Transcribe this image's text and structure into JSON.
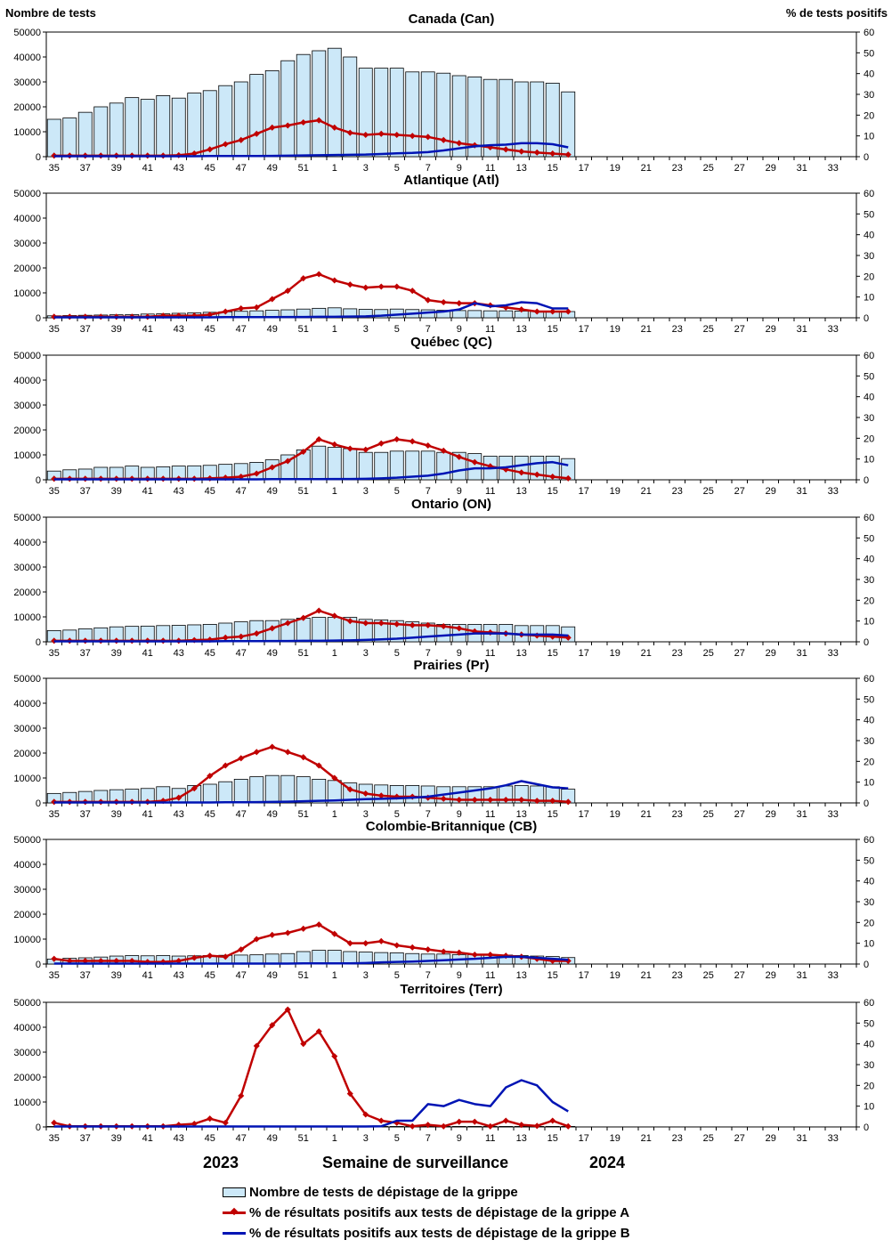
{
  "chart_data": [
    {
      "type": "bar+line",
      "title": "Canada (Can)",
      "weeks": [
        35,
        36,
        37,
        38,
        39,
        40,
        41,
        42,
        43,
        44,
        45,
        46,
        47,
        48,
        49,
        50,
        51,
        52,
        1,
        2,
        3,
        4,
        5,
        6,
        7,
        8,
        9,
        10,
        11,
        12,
        13,
        14,
        15,
        16
      ],
      "x_tick_labels": [
        "35",
        "37",
        "39",
        "41",
        "43",
        "45",
        "47",
        "49",
        "51",
        "1",
        "3",
        "5",
        "7",
        "9",
        "11",
        "13",
        "15",
        "17",
        "19",
        "21",
        "23",
        "25",
        "27",
        "29",
        "31",
        "33"
      ],
      "ylabel_left": "Nombre de tests",
      "ylabel_right": "% de tests positifs",
      "ylim_left": [
        0,
        50000
      ],
      "ylim_right": [
        0,
        60
      ],
      "bars": [
        15000,
        15500,
        17800,
        20000,
        21500,
        23700,
        23000,
        24500,
        23500,
        25500,
        26500,
        28500,
        30000,
        33000,
        34500,
        38500,
        41000,
        42500,
        43500,
        40000,
        35500,
        35500,
        35500,
        34000,
        34000,
        33500,
        32500,
        32000,
        31000,
        31000,
        30000,
        30000,
        29500,
        26000
      ],
      "flu_a_pct": [
        0.5,
        0.5,
        0.5,
        0.5,
        0.5,
        0.5,
        0.5,
        0.5,
        0.7,
        1.5,
        3.5,
        6,
        8,
        11,
        14,
        15,
        16.5,
        17.5,
        14,
        11.5,
        10.5,
        11,
        10.5,
        10,
        9.5,
        8,
        6.5,
        5.5,
        4.5,
        3.5,
        2.5,
        2,
        1.5,
        1
      ],
      "flu_b_pct": [
        0.2,
        0.2,
        0.2,
        0.2,
        0.2,
        0.2,
        0.2,
        0.2,
        0.2,
        0.2,
        0.3,
        0.3,
        0.3,
        0.3,
        0.4,
        0.5,
        0.6,
        0.7,
        0.8,
        0.9,
        1,
        1.3,
        1.6,
        1.8,
        2.2,
        3,
        4,
        5,
        5.5,
        5.8,
        6.5,
        6.5,
        6,
        4.5
      ]
    },
    {
      "type": "bar+line",
      "title": "Atlantique (Atl)",
      "weeks": [
        35,
        36,
        37,
        38,
        39,
        40,
        41,
        42,
        43,
        44,
        45,
        46,
        47,
        48,
        49,
        50,
        51,
        52,
        1,
        2,
        3,
        4,
        5,
        6,
        7,
        8,
        9,
        10,
        11,
        12,
        13,
        14,
        15,
        16
      ],
      "x_tick_labels": [
        "35",
        "37",
        "39",
        "41",
        "43",
        "45",
        "47",
        "49",
        "51",
        "1",
        "3",
        "5",
        "7",
        "9",
        "11",
        "13",
        "15",
        "17",
        "19",
        "21",
        "23",
        "25",
        "27",
        "29",
        "31",
        "33"
      ],
      "ylim_left": [
        0,
        50000
      ],
      "ylim_right": [
        0,
        60
      ],
      "bars": [
        800,
        900,
        1000,
        1100,
        1200,
        1300,
        1500,
        1600,
        1800,
        2000,
        2200,
        2400,
        2600,
        2800,
        3000,
        3200,
        3500,
        3800,
        4000,
        3600,
        3400,
        3300,
        3500,
        3300,
        3200,
        3000,
        2900,
        2900,
        2800,
        2800,
        2700,
        2600,
        2600,
        2500
      ],
      "flu_a_pct": [
        0.5,
        0.5,
        0.5,
        0.5,
        0.5,
        0.5,
        0.5,
        1,
        1,
        1,
        1.5,
        3,
        4.5,
        5,
        9,
        13,
        19,
        21,
        18,
        16,
        14.5,
        15,
        15,
        13,
        8.5,
        7.5,
        7,
        7,
        6,
        5,
        4,
        3,
        3,
        3
      ],
      "flu_b_pct": [
        0.2,
        0.2,
        0.2,
        0.2,
        0.2,
        0.2,
        0.2,
        0.2,
        0.2,
        0.2,
        0.2,
        0.3,
        0.3,
        0.3,
        0.3,
        0.4,
        0.4,
        0.5,
        0.5,
        0.6,
        0.7,
        1,
        1.5,
        2,
        2.5,
        3,
        4,
        7,
        5.5,
        6,
        7.5,
        7,
        4.5,
        4.5
      ]
    },
    {
      "type": "bar+line",
      "title": "Québec (QC)",
      "weeks": [
        35,
        36,
        37,
        38,
        39,
        40,
        41,
        42,
        43,
        44,
        45,
        46,
        47,
        48,
        49,
        50,
        51,
        52,
        1,
        2,
        3,
        4,
        5,
        6,
        7,
        8,
        9,
        10,
        11,
        12,
        13,
        14,
        15,
        16
      ],
      "x_tick_labels": [
        "35",
        "37",
        "39",
        "41",
        "43",
        "45",
        "47",
        "49",
        "51",
        "1",
        "3",
        "5",
        "7",
        "9",
        "11",
        "13",
        "15",
        "17",
        "19",
        "21",
        "23",
        "25",
        "27",
        "29",
        "31",
        "33"
      ],
      "ylim_left": [
        0,
        50000
      ],
      "ylim_right": [
        0,
        60
      ],
      "bars": [
        3500,
        4000,
        4300,
        5000,
        5000,
        5500,
        5000,
        5200,
        5500,
        5600,
        5800,
        6200,
        6500,
        7000,
        8000,
        10000,
        12000,
        13500,
        13000,
        12500,
        11000,
        11000,
        11500,
        11500,
        11500,
        11000,
        11000,
        10500,
        9500,
        9500,
        9500,
        9500,
        9500,
        8500
      ],
      "flu_a_pct": [
        0.5,
        0.5,
        0.5,
        0.5,
        0.5,
        0.5,
        0.5,
        0.5,
        0.5,
        0.5,
        0.7,
        1,
        1.5,
        3,
        6,
        9,
        13.5,
        19.5,
        17,
        15,
        14.5,
        17.5,
        19.5,
        18.5,
        16.5,
        14,
        11,
        8.5,
        6.5,
        5,
        3.5,
        2.5,
        1.5,
        0.7
      ],
      "flu_b_pct": [
        0.2,
        0.2,
        0.2,
        0.2,
        0.2,
        0.2,
        0.2,
        0.2,
        0.2,
        0.2,
        0.2,
        0.2,
        0.2,
        0.2,
        0.3,
        0.3,
        0.3,
        0.3,
        0.4,
        0.4,
        0.5,
        0.7,
        1,
        1.5,
        2,
        3,
        4.5,
        5.5,
        5.5,
        6,
        7,
        8,
        8.5,
        7
      ]
    },
    {
      "type": "bar+line",
      "title": "Ontario (ON)",
      "weeks": [
        35,
        36,
        37,
        38,
        39,
        40,
        41,
        42,
        43,
        44,
        45,
        46,
        47,
        48,
        49,
        50,
        51,
        52,
        1,
        2,
        3,
        4,
        5,
        6,
        7,
        8,
        9,
        10,
        11,
        12,
        13,
        14,
        15,
        16
      ],
      "x_tick_labels": [
        "35",
        "37",
        "39",
        "41",
        "43",
        "45",
        "47",
        "49",
        "51",
        "1",
        "3",
        "5",
        "7",
        "9",
        "11",
        "13",
        "15",
        "17",
        "19",
        "21",
        "23",
        "25",
        "27",
        "29",
        "31",
        "33"
      ],
      "ylim_left": [
        0,
        50000
      ],
      "ylim_right": [
        0,
        60
      ],
      "bars": [
        4500,
        4700,
        5200,
        5600,
        6000,
        6200,
        6300,
        6500,
        6600,
        6800,
        7000,
        7500,
        8000,
        8500,
        8500,
        9000,
        9500,
        9800,
        9800,
        9800,
        9000,
        8800,
        8500,
        8000,
        7500,
        7000,
        7000,
        7000,
        7000,
        7000,
        6500,
        6500,
        6500,
        6000
      ],
      "flu_a_pct": [
        0.5,
        0.5,
        0.5,
        0.5,
        0.5,
        0.5,
        0.5,
        0.5,
        0.5,
        0.8,
        1,
        2,
        2.5,
        4,
        6.5,
        9,
        11.5,
        15,
        12.5,
        10,
        9,
        9,
        8.5,
        8,
        8,
        7.5,
        6.5,
        5,
        4.5,
        4,
        3.5,
        3,
        2.5,
        2
      ],
      "flu_b_pct": [
        0.2,
        0.2,
        0.2,
        0.2,
        0.2,
        0.2,
        0.2,
        0.2,
        0.2,
        0.2,
        0.2,
        0.3,
        0.3,
        0.3,
        0.4,
        0.4,
        0.5,
        0.5,
        0.6,
        0.7,
        0.9,
        1.2,
        1.5,
        2,
        2.5,
        3,
        3.5,
        4,
        4,
        4,
        3.5,
        3.5,
        3.5,
        3
      ]
    },
    {
      "type": "bar+line",
      "title": "Prairies (Pr)",
      "weeks": [
        35,
        36,
        37,
        38,
        39,
        40,
        41,
        42,
        43,
        44,
        45,
        46,
        47,
        48,
        49,
        50,
        51,
        52,
        1,
        2,
        3,
        4,
        5,
        6,
        7,
        8,
        9,
        10,
        11,
        12,
        13,
        14,
        15,
        16
      ],
      "x_tick_labels": [
        "35",
        "37",
        "39",
        "41",
        "43",
        "45",
        "47",
        "49",
        "51",
        "1",
        "3",
        "5",
        "7",
        "9",
        "11",
        "13",
        "15",
        "17",
        "19",
        "21",
        "23",
        "25",
        "27",
        "29",
        "31",
        "33"
      ],
      "ylim_left": [
        0,
        50000
      ],
      "ylim_right": [
        0,
        60
      ],
      "bars": [
        3800,
        4200,
        4600,
        5000,
        5300,
        5500,
        5800,
        6500,
        5800,
        7000,
        7500,
        8500,
        9500,
        10500,
        11000,
        11000,
        10500,
        9500,
        9000,
        8000,
        7500,
        7200,
        7000,
        7000,
        6800,
        6500,
        6500,
        6500,
        6500,
        6800,
        7000,
        6800,
        6500,
        5500
      ],
      "flu_a_pct": [
        0.5,
        0.5,
        0.5,
        0.5,
        0.5,
        0.5,
        0.5,
        1,
        2.5,
        7,
        13,
        18,
        21.5,
        24.5,
        27,
        24.5,
        22,
        18,
        12,
        6.5,
        4.5,
        3.5,
        3,
        3,
        2.5,
        2,
        1.5,
        1.5,
        1.5,
        1.5,
        1.5,
        1,
        1,
        0.5
      ],
      "flu_b_pct": [
        0.2,
        0.2,
        0.2,
        0.2,
        0.2,
        0.2,
        0.2,
        0.2,
        0.2,
        0.2,
        0.2,
        0.3,
        0.3,
        0.4,
        0.5,
        0.6,
        0.8,
        1,
        1.2,
        1.5,
        1.8,
        2,
        2.2,
        2.5,
        3,
        4,
        5,
        6,
        7,
        8.5,
        10.5,
        9,
        7.5,
        7
      ]
    },
    {
      "type": "bar+line",
      "title": "Colombie-Britannique (CB)",
      "weeks": [
        35,
        36,
        37,
        38,
        39,
        40,
        41,
        42,
        43,
        44,
        45,
        46,
        47,
        48,
        49,
        50,
        51,
        52,
        1,
        2,
        3,
        4,
        5,
        6,
        7,
        8,
        9,
        10,
        11,
        12,
        13,
        14,
        15,
        16
      ],
      "x_tick_labels": [
        "35",
        "37",
        "39",
        "41",
        "43",
        "45",
        "47",
        "49",
        "51",
        "1",
        "3",
        "5",
        "7",
        "9",
        "11",
        "13",
        "15",
        "17",
        "19",
        "21",
        "23",
        "25",
        "27",
        "29",
        "31",
        "33"
      ],
      "ylim_left": [
        0,
        50000
      ],
      "ylim_right": [
        0,
        60
      ],
      "bars": [
        2000,
        2300,
        2500,
        2800,
        3200,
        3400,
        3300,
        3400,
        3200,
        3300,
        3400,
        3500,
        3600,
        3700,
        4000,
        4200,
        5000,
        5500,
        5500,
        5000,
        4800,
        4600,
        4500,
        4200,
        4000,
        4000,
        3800,
        3800,
        3700,
        3600,
        3400,
        3200,
        3000,
        2600
      ],
      "flu_a_pct": [
        2.5,
        1.5,
        1.5,
        1.5,
        1.5,
        1.5,
        1,
        1,
        1.5,
        3,
        4,
        3.5,
        7,
        12,
        14,
        15,
        17,
        19,
        14.5,
        10,
        10,
        11,
        9,
        8,
        7,
        6,
        5.5,
        4.5,
        4.5,
        4,
        3.5,
        2.5,
        1.5,
        1.5
      ],
      "flu_b_pct": [
        0.2,
        0.2,
        0.2,
        0.2,
        0.2,
        0.2,
        0.2,
        0.2,
        0.2,
        0.2,
        0.2,
        0.2,
        0.2,
        0.2,
        0.2,
        0.2,
        0.3,
        0.3,
        0.3,
        0.3,
        0.5,
        0.8,
        1,
        1.2,
        1.5,
        1.8,
        2.2,
        2.5,
        3,
        3.5,
        3.5,
        3,
        2.5,
        2
      ]
    },
    {
      "type": "bar+line",
      "title": "Territoires (Terr)",
      "weeks": [
        35,
        36,
        37,
        38,
        39,
        40,
        41,
        42,
        43,
        44,
        45,
        46,
        47,
        48,
        49,
        50,
        51,
        52,
        1,
        2,
        3,
        4,
        5,
        6,
        7,
        8,
        9,
        10,
        11,
        12,
        13,
        14,
        15,
        16
      ],
      "x_tick_labels": [
        "35",
        "37",
        "39",
        "41",
        "43",
        "45",
        "47",
        "49",
        "51",
        "1",
        "3",
        "5",
        "7",
        "9",
        "11",
        "13",
        "15",
        "17",
        "19",
        "21",
        "23",
        "25",
        "27",
        "29",
        "31",
        "33"
      ],
      "ylim_left": [
        0,
        50000
      ],
      "ylim_right": [
        0,
        60
      ],
      "bars": [
        200,
        150,
        150,
        150,
        150,
        150,
        150,
        150,
        200,
        200,
        200,
        200,
        200,
        200,
        200,
        200,
        200,
        200,
        200,
        200,
        200,
        200,
        200,
        200,
        200,
        200,
        200,
        200,
        200,
        200,
        200,
        200,
        200,
        200
      ],
      "flu_a_pct": [
        2,
        0.3,
        0.3,
        0.3,
        0.3,
        0.3,
        0.3,
        0.3,
        1,
        1.5,
        4,
        2,
        15,
        39,
        49,
        56.5,
        40,
        46,
        34,
        16,
        6,
        3,
        2,
        0.3,
        1,
        0.3,
        2.5,
        2.5,
        0.3,
        3,
        1,
        0.5,
        3,
        0.3
      ],
      "flu_b_pct": [
        0.2,
        0.2,
        0.2,
        0.2,
        0.2,
        0.2,
        0.2,
        0.2,
        0.2,
        0.2,
        0.2,
        0.2,
        0.2,
        0.2,
        0.2,
        0.2,
        0.2,
        0.2,
        0.2,
        0.2,
        0.2,
        0.3,
        3,
        3,
        11,
        10,
        13,
        11,
        10,
        19,
        22.5,
        20,
        12,
        7.5
      ]
    }
  ],
  "labels": {
    "left_axis_title": "Nombre de tests",
    "right_axis_title": "% de tests positifs",
    "year_left": "2023",
    "x_title": "Semaine de surveillance",
    "year_right": "2024"
  },
  "left_ticks": [
    "0",
    "10000",
    "20000",
    "30000",
    "40000",
    "50000"
  ],
  "right_ticks": [
    "0",
    "10",
    "20",
    "30",
    "40",
    "50",
    "60"
  ],
  "legend": {
    "bars": "Nombre de tests de dépistage de la grippe",
    "flu_a": "% de résultats positifs aux tests de dépistage de la grippe A",
    "flu_b": "% de résultats positifs aux tests de dépistage de la grippe B"
  },
  "colors": {
    "bar_fill": "#cce8f8",
    "flu_a": "#c00000",
    "flu_b": "#0014b4"
  }
}
